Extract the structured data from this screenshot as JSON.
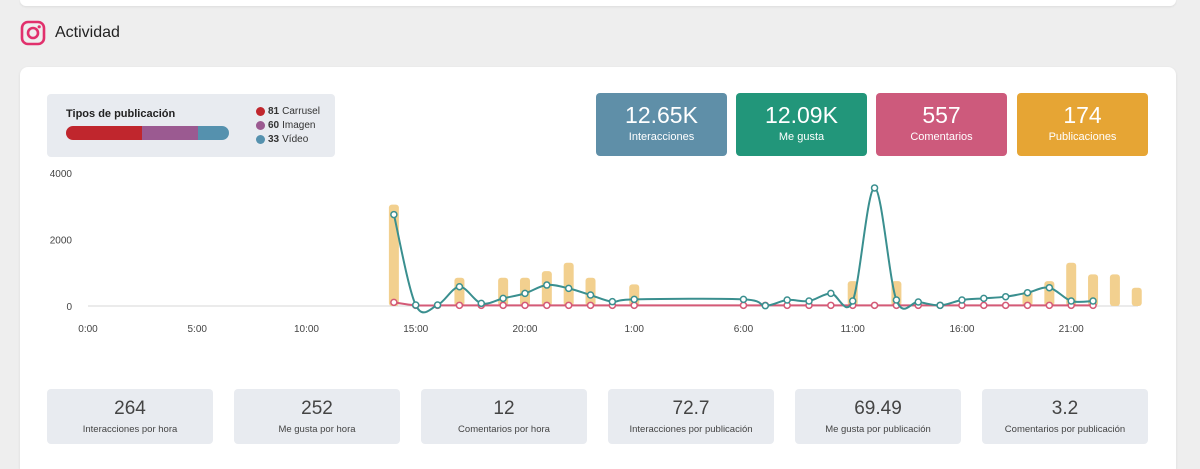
{
  "header": {
    "title": "Actividad",
    "icon": "instagram-icon"
  },
  "types": {
    "title": "Tipos de publicación",
    "items": [
      {
        "count": "81",
        "label": "Carrusel",
        "color": "#c0262d"
      },
      {
        "count": "60",
        "label": "Imagen",
        "color": "#9b5a91"
      },
      {
        "count": "33",
        "label": "Vídeo",
        "color": "#5591ae"
      }
    ]
  },
  "stats": [
    {
      "value": "12.65K",
      "label": "Interacciones",
      "color": "#5f8fa8"
    },
    {
      "value": "12.09K",
      "label": "Me gusta",
      "color": "#22967a"
    },
    {
      "value": "557",
      "label": "Comentarios",
      "color": "#cd5a7c"
    },
    {
      "value": "174",
      "label": "Publicaciones",
      "color": "#e6a534"
    }
  ],
  "chart_data": {
    "type": "line",
    "y_ticks": [
      "0",
      "2000",
      "4000"
    ],
    "ylim": [
      0,
      4000
    ],
    "x_ticks": [
      "0:00",
      "5:00",
      "10:00",
      "15:00",
      "20:00",
      "1:00",
      "6:00",
      "11:00",
      "16:00",
      "21:00"
    ],
    "x_tick_hours": [
      0,
      5,
      10,
      15,
      20,
      25,
      30,
      35,
      40,
      45
    ],
    "x_range_hours": [
      0,
      47
    ],
    "series": [
      {
        "name": "Interacciones",
        "kind": "bar",
        "color": "#f2d08f",
        "points": [
          [
            14,
            3050
          ],
          [
            17,
            850
          ],
          [
            19,
            850
          ],
          [
            20,
            850
          ],
          [
            21,
            1050
          ],
          [
            22,
            1300
          ],
          [
            23,
            850
          ],
          [
            25,
            650
          ],
          [
            35,
            750
          ],
          [
            37,
            750
          ],
          [
            43,
            450
          ],
          [
            44,
            750
          ],
          [
            45,
            1300
          ],
          [
            46,
            950
          ],
          [
            47,
            950
          ],
          [
            48,
            550
          ]
        ]
      },
      {
        "name": "Me gusta",
        "kind": "line",
        "color": "#3a8f8f",
        "points": [
          [
            14,
            2750
          ],
          [
            15,
            30
          ],
          [
            16,
            30
          ],
          [
            17,
            580
          ],
          [
            18,
            80
          ],
          [
            19,
            230
          ],
          [
            20,
            380
          ],
          [
            21,
            630
          ],
          [
            22,
            530
          ],
          [
            23,
            330
          ],
          [
            24,
            130
          ],
          [
            25,
            200
          ],
          [
            30,
            200
          ],
          [
            31,
            10
          ],
          [
            32,
            180
          ],
          [
            33,
            150
          ],
          [
            34,
            380
          ],
          [
            35,
            150
          ],
          [
            36,
            3550
          ],
          [
            37,
            180
          ],
          [
            38,
            120
          ],
          [
            39,
            20
          ],
          [
            40,
            180
          ],
          [
            41,
            230
          ],
          [
            42,
            280
          ],
          [
            43,
            400
          ],
          [
            44,
            550
          ],
          [
            45,
            150
          ],
          [
            46,
            150
          ]
        ]
      },
      {
        "name": "Comentarios",
        "kind": "line",
        "color": "#d45a77",
        "points": [
          [
            14,
            110
          ],
          [
            15,
            20
          ],
          [
            16,
            20
          ],
          [
            17,
            20
          ],
          [
            18,
            20
          ],
          [
            19,
            20
          ],
          [
            20,
            20
          ],
          [
            21,
            20
          ],
          [
            22,
            20
          ],
          [
            23,
            20
          ],
          [
            24,
            20
          ],
          [
            25,
            20
          ],
          [
            30,
            20
          ],
          [
            31,
            20
          ],
          [
            32,
            20
          ],
          [
            33,
            20
          ],
          [
            34,
            20
          ],
          [
            35,
            20
          ],
          [
            36,
            20
          ],
          [
            37,
            20
          ],
          [
            38,
            20
          ],
          [
            39,
            20
          ],
          [
            40,
            20
          ],
          [
            41,
            20
          ],
          [
            42,
            20
          ],
          [
            43,
            20
          ],
          [
            44,
            20
          ],
          [
            45,
            20
          ],
          [
            46,
            20
          ]
        ]
      }
    ]
  },
  "bottom": [
    {
      "value": "264",
      "label": "Interacciones por hora"
    },
    {
      "value": "252",
      "label": "Me gusta por hora"
    },
    {
      "value": "12",
      "label": "Comentarios por hora"
    },
    {
      "value": "72.7",
      "label": "Interacciones por publicación"
    },
    {
      "value": "69.49",
      "label": "Me gusta por publicación"
    },
    {
      "value": "3.2",
      "label": "Comentarios por publicación"
    }
  ]
}
